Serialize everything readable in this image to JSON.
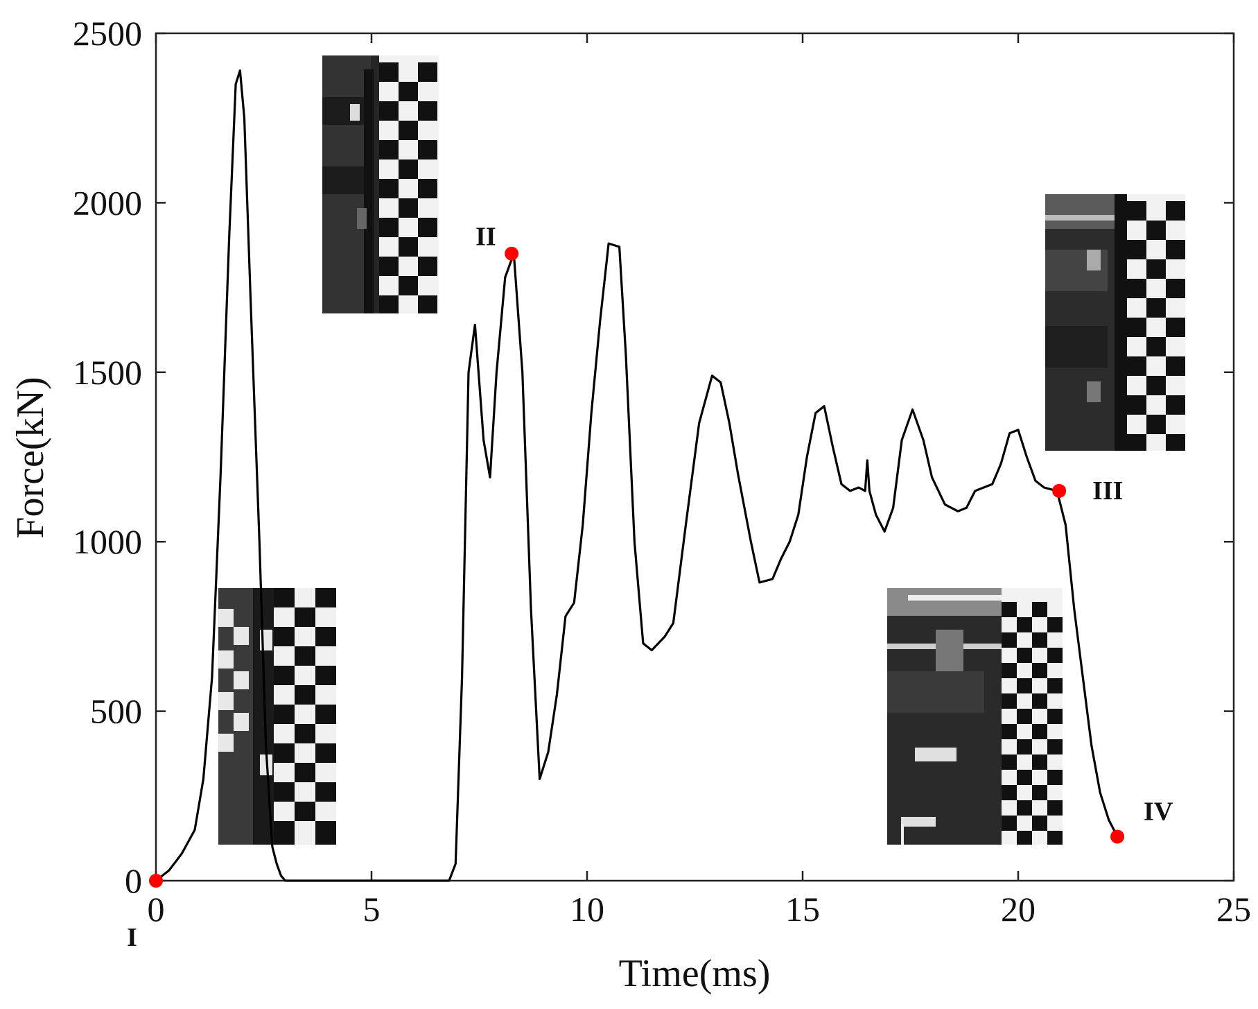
{
  "chart_data": {
    "type": "line",
    "xlabel": "Time(ms)",
    "ylabel": "Force(kN)",
    "xlim": [
      0,
      25
    ],
    "ylim": [
      0,
      2500
    ],
    "xticks": [
      "0",
      "5",
      "10",
      "15",
      "20",
      "25"
    ],
    "yticks": [
      "0",
      "500",
      "1000",
      "1500",
      "2000",
      "2500"
    ],
    "grid": false,
    "series": [
      {
        "color": "#000000",
        "x": [
          0,
          0.3,
          0.6,
          0.9,
          1.1,
          1.3,
          1.5,
          1.7,
          1.85,
          1.95,
          2.05,
          2.2,
          2.4,
          2.55,
          2.7,
          2.8,
          2.9,
          3.0,
          3.5,
          5.0,
          6.5,
          6.8,
          6.95,
          7.1,
          7.25,
          7.4,
          7.6,
          7.75,
          7.9,
          8.1,
          8.3,
          8.5,
          8.7,
          8.9,
          9.1,
          9.3,
          9.5,
          9.7,
          9.9,
          10.1,
          10.3,
          10.5,
          10.75,
          10.9,
          11.1,
          11.3,
          11.5,
          11.8,
          12.0,
          12.3,
          12.6,
          12.9,
          13.1,
          13.3,
          13.5,
          13.8,
          14.0,
          14.3,
          14.5,
          14.7,
          14.9,
          15.1,
          15.3,
          15.5,
          15.7,
          15.9,
          16.1,
          16.3,
          16.45,
          16.5,
          16.55,
          16.7,
          16.9,
          17.1,
          17.3,
          17.55,
          17.8,
          18.0,
          18.3,
          18.6,
          18.8,
          19.0,
          19.2,
          19.4,
          19.6,
          19.8,
          20.0,
          20.2,
          20.4,
          20.6,
          20.9,
          21.1,
          21.3,
          21.5,
          21.7,
          21.9,
          22.1,
          22.3
        ],
        "values": [
          0,
          30,
          80,
          150,
          300,
          600,
          1200,
          1900,
          2350,
          2390,
          2250,
          1700,
          1000,
          400,
          100,
          50,
          15,
          0,
          0,
          0,
          0,
          0,
          50,
          600,
          1500,
          1640,
          1300,
          1190,
          1500,
          1780,
          1850,
          1500,
          800,
          300,
          380,
          550,
          780,
          820,
          1050,
          1380,
          1650,
          1880,
          1870,
          1550,
          1000,
          700,
          680,
          720,
          760,
          1060,
          1350,
          1490,
          1470,
          1350,
          1200,
          1000,
          880,
          890,
          950,
          1000,
          1080,
          1250,
          1380,
          1400,
          1280,
          1170,
          1150,
          1160,
          1150,
          1240,
          1150,
          1080,
          1030,
          1100,
          1300,
          1390,
          1300,
          1190,
          1110,
          1090,
          1100,
          1150,
          1160,
          1170,
          1230,
          1320,
          1330,
          1250,
          1180,
          1160,
          1150,
          1050,
          800,
          600,
          400,
          260,
          180,
          130
        ]
      }
    ],
    "points": [
      {
        "label": "I",
        "x": 0.0,
        "y": 0,
        "color": "#ff0000"
      },
      {
        "label": "II",
        "x": 8.25,
        "y": 1850,
        "color": "#ff0000"
      },
      {
        "label": "III",
        "x": 20.95,
        "y": 1150,
        "color": "#ff0000"
      },
      {
        "label": "IV",
        "x": 22.3,
        "y": 130,
        "color": "#ff0000"
      }
    ]
  }
}
